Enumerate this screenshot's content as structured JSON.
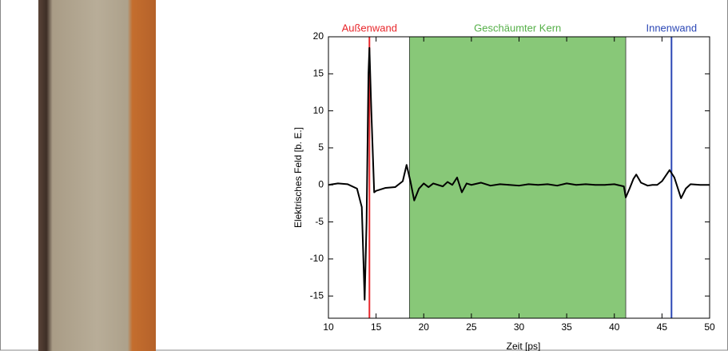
{
  "chart_data": {
    "type": "line",
    "x_label": "Zeit [ps]",
    "y_label": "Elektrisches Feld [b. E.]",
    "xlim": [
      10,
      50
    ],
    "ylim": [
      -18,
      20
    ],
    "xticks": [
      10,
      15,
      20,
      25,
      30,
      35,
      40,
      45,
      50
    ],
    "yticks": [
      -15,
      -10,
      -5,
      0,
      5,
      10,
      15,
      20
    ],
    "series": [
      {
        "color": "#000000",
        "x": [
          10,
          11,
          12,
          13,
          13.5,
          13.8,
          14.0,
          14.2,
          14.3,
          14.5,
          14.8,
          15,
          16,
          17,
          17.8,
          18.2,
          18.6,
          19,
          19.5,
          20,
          20.5,
          21,
          22,
          22.5,
          23,
          23.5,
          24,
          24.5,
          25,
          26,
          27,
          28,
          29,
          30,
          31,
          32,
          33,
          34,
          35,
          36,
          37,
          38,
          39,
          40,
          41,
          41.2,
          41.6,
          42,
          42.3,
          42.8,
          43.5,
          44,
          44.5,
          45,
          45.8,
          46.3,
          47,
          47.5,
          48,
          49,
          50
        ],
        "values": [
          0,
          0.2,
          0.1,
          -0.5,
          -3,
          -15.5,
          -5,
          15,
          18.5,
          10,
          -1,
          -0.8,
          -0.4,
          -0.3,
          0.5,
          2.7,
          0.5,
          -2.1,
          -0.5,
          0.2,
          -0.3,
          0.2,
          -0.2,
          0.4,
          0,
          1,
          -1,
          0.2,
          0,
          0.3,
          -0.1,
          0.1,
          0,
          -0.1,
          0.1,
          0,
          0.1,
          -0.1,
          0.2,
          0,
          0.1,
          0,
          0,
          0.1,
          -0.2,
          -1.7,
          -0.5,
          0.8,
          1.4,
          0.3,
          -0.1,
          0,
          0,
          0.5,
          2.0,
          1,
          -1.8,
          -0.5,
          0.1,
          0,
          0
        ]
      }
    ],
    "span": {
      "x0": 18.5,
      "x1": 41.2,
      "color": "#88c878",
      "label": "Geschäumter Kern",
      "label_color": "#55b048"
    },
    "vlines": [
      {
        "x": 14.3,
        "color": "#e8262b",
        "label": "Außenwand"
      },
      {
        "x": 46,
        "color": "#2b47b5",
        "label": "Innenwand"
      }
    ]
  }
}
